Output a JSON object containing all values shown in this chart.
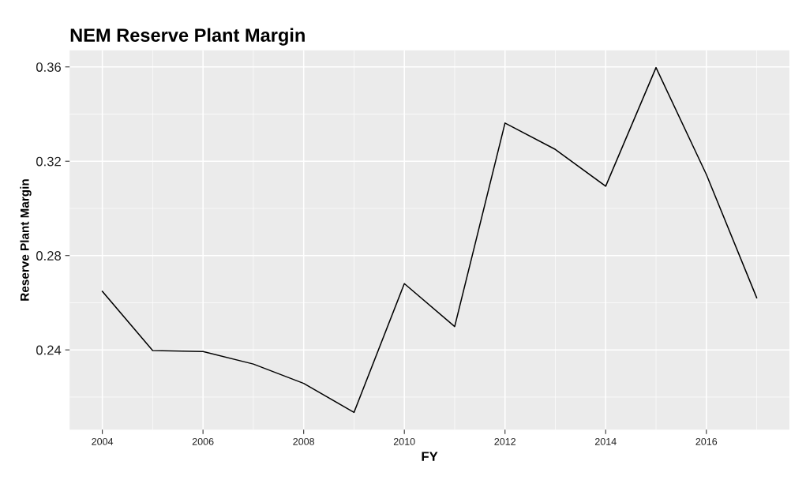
{
  "chart_data": {
    "type": "line",
    "title": "NEM Reserve Plant Margin",
    "xlabel": "FY",
    "ylabel": "Reserve Plant Margin",
    "x": [
      2004,
      2005,
      2006,
      2007,
      2008,
      2009,
      2010,
      2011,
      2012,
      2013,
      2014,
      2015,
      2016,
      2017
    ],
    "series": [
      {
        "color": "#000000",
        "values": [
          0.2648,
          0.2397,
          0.2393,
          0.234,
          0.2258,
          0.2135,
          0.2681,
          0.2499,
          0.3362,
          0.325,
          0.3094,
          0.3597,
          0.3144,
          0.2621
        ]
      }
    ],
    "xlim": [
      2003.35,
      2017.65
    ],
    "ylim": [
      0.2062,
      0.367
    ],
    "xticks": [
      2004,
      2006,
      2008,
      2010,
      2012,
      2014,
      2016
    ],
    "yticks": [
      {
        "value": 0.24,
        "label": "0.24"
      },
      {
        "value": 0.28,
        "label": "0.28"
      },
      {
        "value": 0.32,
        "label": "0.32"
      },
      {
        "value": 0.36,
        "label": "0.36"
      }
    ],
    "grid": true
  }
}
